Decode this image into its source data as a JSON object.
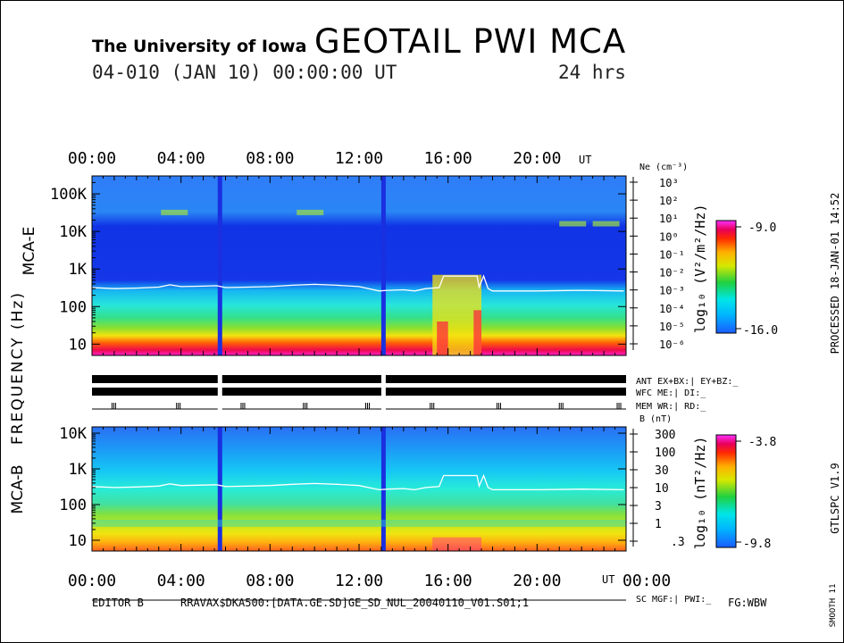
{
  "header": {
    "institution": "The University of Iowa",
    "instrument": "GEOTAIL PWI MCA",
    "date_line": "04-010 (JAN 10) 00:00:00 UT",
    "span": "24 hrs"
  },
  "time_axis": {
    "labels": [
      "00:00",
      "04:00",
      "08:00",
      "12:00",
      "16:00",
      "20:00"
    ],
    "unit": "UT",
    "end_label": "00:00"
  },
  "left_labels": {
    "mca_e": "MCA-E",
    "mca_b": "MCA-B",
    "frequency": "FREQUENCY (Hz)"
  },
  "mca_e": {
    "freq_ticks": [
      "100K",
      "10K",
      "1K",
      "100",
      "10"
    ],
    "ne_title": "Ne (cm⁻³)",
    "ne_ticks": [
      "10³",
      "10²",
      "10¹",
      "10⁰",
      "10⁻¹",
      "10⁻²",
      "10⁻³",
      "10⁻⁴",
      "10⁻⁵",
      "10⁻⁶"
    ],
    "colorbar": {
      "label": "log₁₀ (V²/m²/Hz)",
      "max": "-9.0",
      "min": "-16.0"
    }
  },
  "mca_b": {
    "freq_ticks": [
      "10K",
      "1K",
      "100",
      "10"
    ],
    "b_title": "B (nT)",
    "b_ticks": [
      "300",
      "100",
      "30",
      "10",
      "3",
      "1",
      ".3"
    ],
    "colorbar": {
      "label": "log₁₀ (nT²/Hz)",
      "max": "-3.8",
      "min": "-9.8"
    }
  },
  "status_labels": {
    "ant": "ANT EX+BX:| EY+BZ:_",
    "wfc": "WFC ME:| DI:_",
    "mem": "MEM WR:| RD:_",
    "sc": "SC MGF:| PWI:_"
  },
  "right_side": {
    "processed": "PROCESSED 18-JAN-01 14:52",
    "version": "GTLSPC V1.9",
    "smooth": "SMOOTH 11"
  },
  "footer": {
    "editor": "EDITOR B",
    "path": "RRAVAX$DKA500:[DATA.GE.SD]GE_SD_NUL_20040110_V01.S01;1",
    "fg": "FG:WBW"
  },
  "chart_data": [
    {
      "type": "heatmap",
      "title": "MCA-E",
      "x_unit": "hours UT",
      "xlim": [
        0,
        24
      ],
      "x_ticks": [
        0,
        4,
        8,
        12,
        16,
        20
      ],
      "yscale": "log",
      "ylim_hz": [
        5,
        300000
      ],
      "y_ticks_hz": [
        100000,
        10000,
        1000,
        100,
        10
      ],
      "color_scale": {
        "unit": "log10 (V²/m²/Hz)",
        "min": -16.0,
        "max": -9.0
      },
      "data_gaps_hours": [
        [
          5.65,
          5.85
        ],
        [
          13.0,
          13.2
        ]
      ],
      "plasma_frequency_line_hz": [
        [
          0,
          320
        ],
        [
          1,
          300
        ],
        [
          2,
          310
        ],
        [
          3,
          330
        ],
        [
          3.5,
          380
        ],
        [
          4,
          340
        ],
        [
          5,
          350
        ],
        [
          5.6,
          360
        ],
        [
          6,
          320
        ],
        [
          7,
          330
        ],
        [
          8,
          340
        ],
        [
          9,
          370
        ],
        [
          10,
          390
        ],
        [
          11,
          370
        ],
        [
          12,
          340
        ],
        [
          12.9,
          260
        ],
        [
          13.3,
          270
        ],
        [
          14,
          280
        ],
        [
          14.5,
          260
        ],
        [
          15,
          300
        ],
        [
          15.6,
          320
        ],
        [
          15.8,
          650
        ],
        [
          17.3,
          650
        ],
        [
          17.4,
          330
        ],
        [
          17.6,
          650
        ],
        [
          17.8,
          300
        ],
        [
          18,
          260
        ],
        [
          20,
          260
        ],
        [
          22,
          270
        ],
        [
          23.9,
          260
        ]
      ]
    },
    {
      "type": "heatmap",
      "title": "MCA-B",
      "x_unit": "hours UT",
      "xlim": [
        0,
        24
      ],
      "x_ticks": [
        0,
        4,
        8,
        12,
        16,
        20,
        24
      ],
      "yscale": "log",
      "ylim_hz": [
        5,
        15000
      ],
      "y_ticks_hz": [
        10000,
        1000,
        100,
        10
      ],
      "color_scale": {
        "unit": "log10 (nT²/Hz)",
        "min": -9.8,
        "max": -3.8
      },
      "data_gaps_hours": [
        [
          5.65,
          5.85
        ],
        [
          13.0,
          13.2
        ]
      ],
      "electron_cyclotron_line_hz": [
        [
          0,
          320
        ],
        [
          1,
          300
        ],
        [
          2,
          310
        ],
        [
          3,
          330
        ],
        [
          3.5,
          380
        ],
        [
          4,
          340
        ],
        [
          5,
          350
        ],
        [
          5.6,
          360
        ],
        [
          6,
          320
        ],
        [
          7,
          330
        ],
        [
          8,
          340
        ],
        [
          9,
          370
        ],
        [
          10,
          390
        ],
        [
          11,
          370
        ],
        [
          12,
          340
        ],
        [
          12.9,
          260
        ],
        [
          13.3,
          270
        ],
        [
          14,
          280
        ],
        [
          14.5,
          260
        ],
        [
          15,
          300
        ],
        [
          15.6,
          320
        ],
        [
          15.8,
          650
        ],
        [
          17.3,
          650
        ],
        [
          17.4,
          330
        ],
        [
          17.6,
          650
        ],
        [
          17.8,
          300
        ],
        [
          18,
          260
        ],
        [
          20,
          260
        ],
        [
          22,
          270
        ],
        [
          23.9,
          260
        ]
      ]
    }
  ]
}
